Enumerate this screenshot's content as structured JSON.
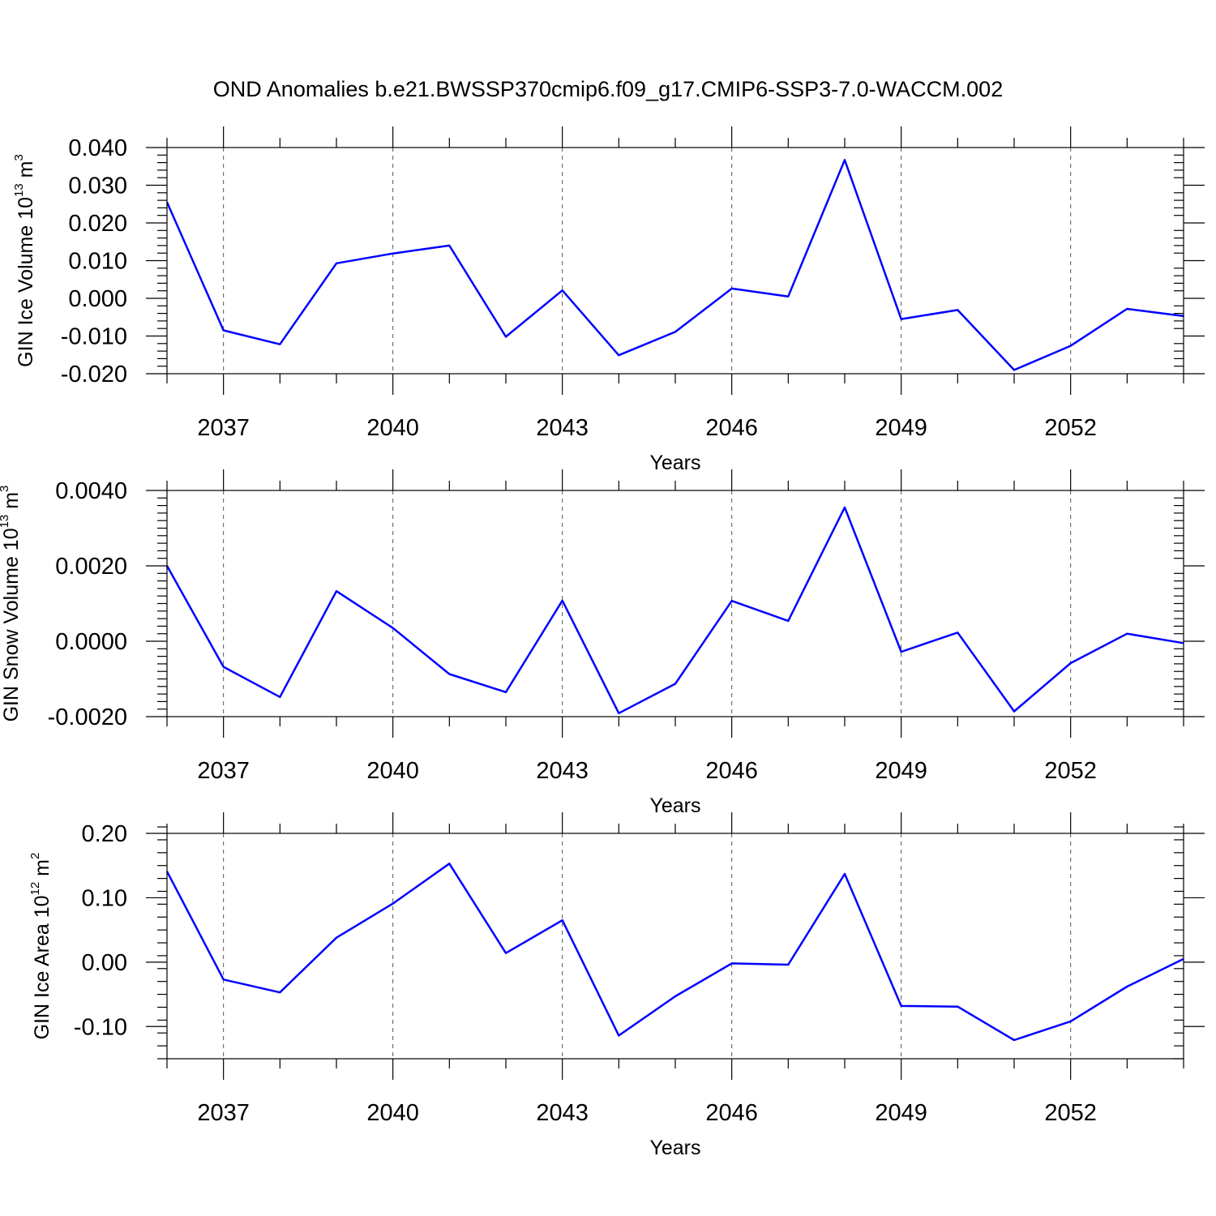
{
  "title": "OND Anomalies b.e21.BWSSP370cmip6.f09_g17.CMIP6-SSP3-7.0-WACCM.002",
  "colors": {
    "line": "#0000ff",
    "axis": "#000000",
    "grid": "#555555"
  },
  "chart_data": [
    {
      "type": "line",
      "xlabel": "Years",
      "ylabel": {
        "text": "GIN Ice Volume 10",
        "exp": "13",
        "unit": " m",
        "unit_exp": "3"
      },
      "x": [
        2036,
        2037,
        2038,
        2039,
        2040,
        2041,
        2042,
        2043,
        2044,
        2045,
        2046,
        2047,
        2048,
        2049,
        2050,
        2051,
        2052,
        2053,
        2054
      ],
      "values": [
        0.0255,
        -0.0085,
        -0.0122,
        0.0093,
        0.0119,
        0.014,
        -0.0102,
        0.0021,
        -0.0151,
        -0.0089,
        0.0026,
        0.0005,
        0.0367,
        -0.0055,
        -0.0031,
        -0.019,
        -0.0126,
        -0.0028,
        -0.0047
      ],
      "xlim": [
        2036,
        2054
      ],
      "ylim": [
        -0.02,
        0.04
      ],
      "yticks": [
        -0.02,
        -0.01,
        0.0,
        0.01,
        0.02,
        0.03,
        0.04
      ],
      "ytick_labels": [
        "-0.020",
        "-0.010",
        "0.000",
        "0.010",
        "0.020",
        "0.030",
        "0.040"
      ],
      "yminor_step": 0.002,
      "xticks": [
        2037,
        2040,
        2043,
        2046,
        2049,
        2052
      ],
      "xtick_labels": [
        "2037",
        "2040",
        "2043",
        "2046",
        "2049",
        "2052"
      ],
      "grid": "vertical dashed at labeled years"
    },
    {
      "type": "line",
      "xlabel": "Years",
      "ylabel": {
        "text": "GIN Snow Volume 10",
        "exp": "13",
        "unit": " m",
        "unit_exp": "3"
      },
      "x": [
        2036,
        2037,
        2038,
        2039,
        2040,
        2041,
        2042,
        2043,
        2044,
        2045,
        2046,
        2047,
        2048,
        2049,
        2050,
        2051,
        2052,
        2053,
        2054
      ],
      "values": [
        0.002,
        -0.00068,
        -0.00148,
        0.00133,
        0.00035,
        -0.00087,
        -0.00135,
        0.00108,
        -0.00191,
        -0.00113,
        0.00107,
        0.00054,
        0.00355,
        -0.00028,
        0.00023,
        -0.00186,
        -0.00058,
        0.0002,
        -5e-05
      ],
      "xlim": [
        2036,
        2054
      ],
      "ylim": [
        -0.002,
        0.004
      ],
      "yticks": [
        -0.002,
        0.0,
        0.002,
        0.004
      ],
      "ytick_labels": [
        "-0.0020",
        "0.0000",
        "0.0020",
        "0.0040"
      ],
      "yminor_step": 0.0002,
      "xticks": [
        2037,
        2040,
        2043,
        2046,
        2049,
        2052
      ],
      "xtick_labels": [
        "2037",
        "2040",
        "2043",
        "2046",
        "2049",
        "2052"
      ],
      "grid": "vertical dashed at labeled years"
    },
    {
      "type": "line",
      "xlabel": "Years",
      "ylabel": {
        "text": "GIN Ice Area 10",
        "exp": "12",
        "unit": " m",
        "unit_exp": "2"
      },
      "x": [
        2036,
        2037,
        2038,
        2039,
        2040,
        2041,
        2042,
        2043,
        2044,
        2045,
        2046,
        2047,
        2048,
        2049,
        2050,
        2051,
        2052,
        2053,
        2054
      ],
      "values": [
        0.141,
        -0.027,
        -0.047,
        0.038,
        0.091,
        0.153,
        0.014,
        0.065,
        -0.114,
        -0.053,
        -0.002,
        -0.004,
        0.137,
        -0.068,
        -0.069,
        -0.121,
        -0.092,
        -0.038,
        0.005
      ],
      "xlim": [
        2036,
        2054
      ],
      "ylim": [
        -0.15,
        0.2
      ],
      "yticks": [
        -0.1,
        0.0,
        0.1,
        0.2
      ],
      "ytick_labels": [
        "-0.10",
        "0.00",
        "0.10",
        "0.20"
      ],
      "yminor_step": 0.02,
      "xticks": [
        2037,
        2040,
        2043,
        2046,
        2049,
        2052
      ],
      "xtick_labels": [
        "2037",
        "2040",
        "2043",
        "2046",
        "2049",
        "2052"
      ],
      "grid": "vertical dashed at labeled years"
    }
  ]
}
